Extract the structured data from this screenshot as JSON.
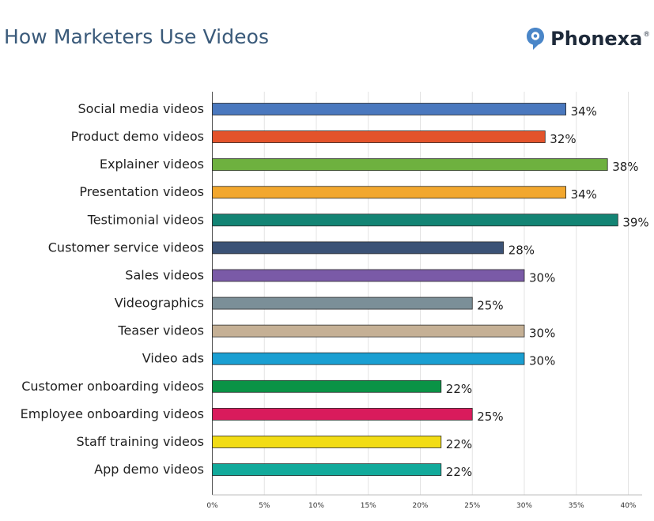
{
  "header": {
    "title": "How Marketers Use Videos",
    "brand_name": "Phonexa",
    "brand_reg": "®",
    "brand_icon": "phonexa-logo-icon",
    "brand_color": "#4a86c8"
  },
  "chart_data": {
    "type": "bar",
    "orientation": "horizontal",
    "title": "How Marketers Use Videos",
    "xlabel": "",
    "ylabel": "",
    "xlim": [
      0,
      41
    ],
    "x_ticks": [
      0,
      5,
      10,
      15,
      20,
      25,
      30,
      35,
      40
    ],
    "x_tick_labels": [
      "0%",
      "5%",
      "10%",
      "15%",
      "20%",
      "25%",
      "30%",
      "35%",
      "40%"
    ],
    "grid": "vertical",
    "categories": [
      "Social media videos",
      "Product demo videos",
      "Explainer videos",
      "Presentation videos",
      "Testimonial videos",
      "Customer service videos",
      "Sales videos",
      "Videographics",
      "Teaser videos",
      "Video ads",
      "Customer onboarding videos",
      "Employee onboarding videos",
      "Staff training videos",
      "App demo videos"
    ],
    "values": [
      34,
      32,
      38,
      34,
      39,
      28,
      30,
      25,
      30,
      30,
      22,
      25,
      22,
      22
    ],
    "value_labels": [
      "34%",
      "32%",
      "38%",
      "34%",
      "39%",
      "28%",
      "30%",
      "25%",
      "30%",
      "30%",
      "22%",
      "25%",
      "22%",
      "22%"
    ],
    "colors": [
      "#4a78be",
      "#e3532b",
      "#6eb13f",
      "#f2a72e",
      "#138474",
      "#3b5276",
      "#7a5aa7",
      "#7b8f98",
      "#c5b095",
      "#1a9fd2",
      "#0a9346",
      "#d91b5c",
      "#f2dc14",
      "#12aa9b"
    ]
  }
}
